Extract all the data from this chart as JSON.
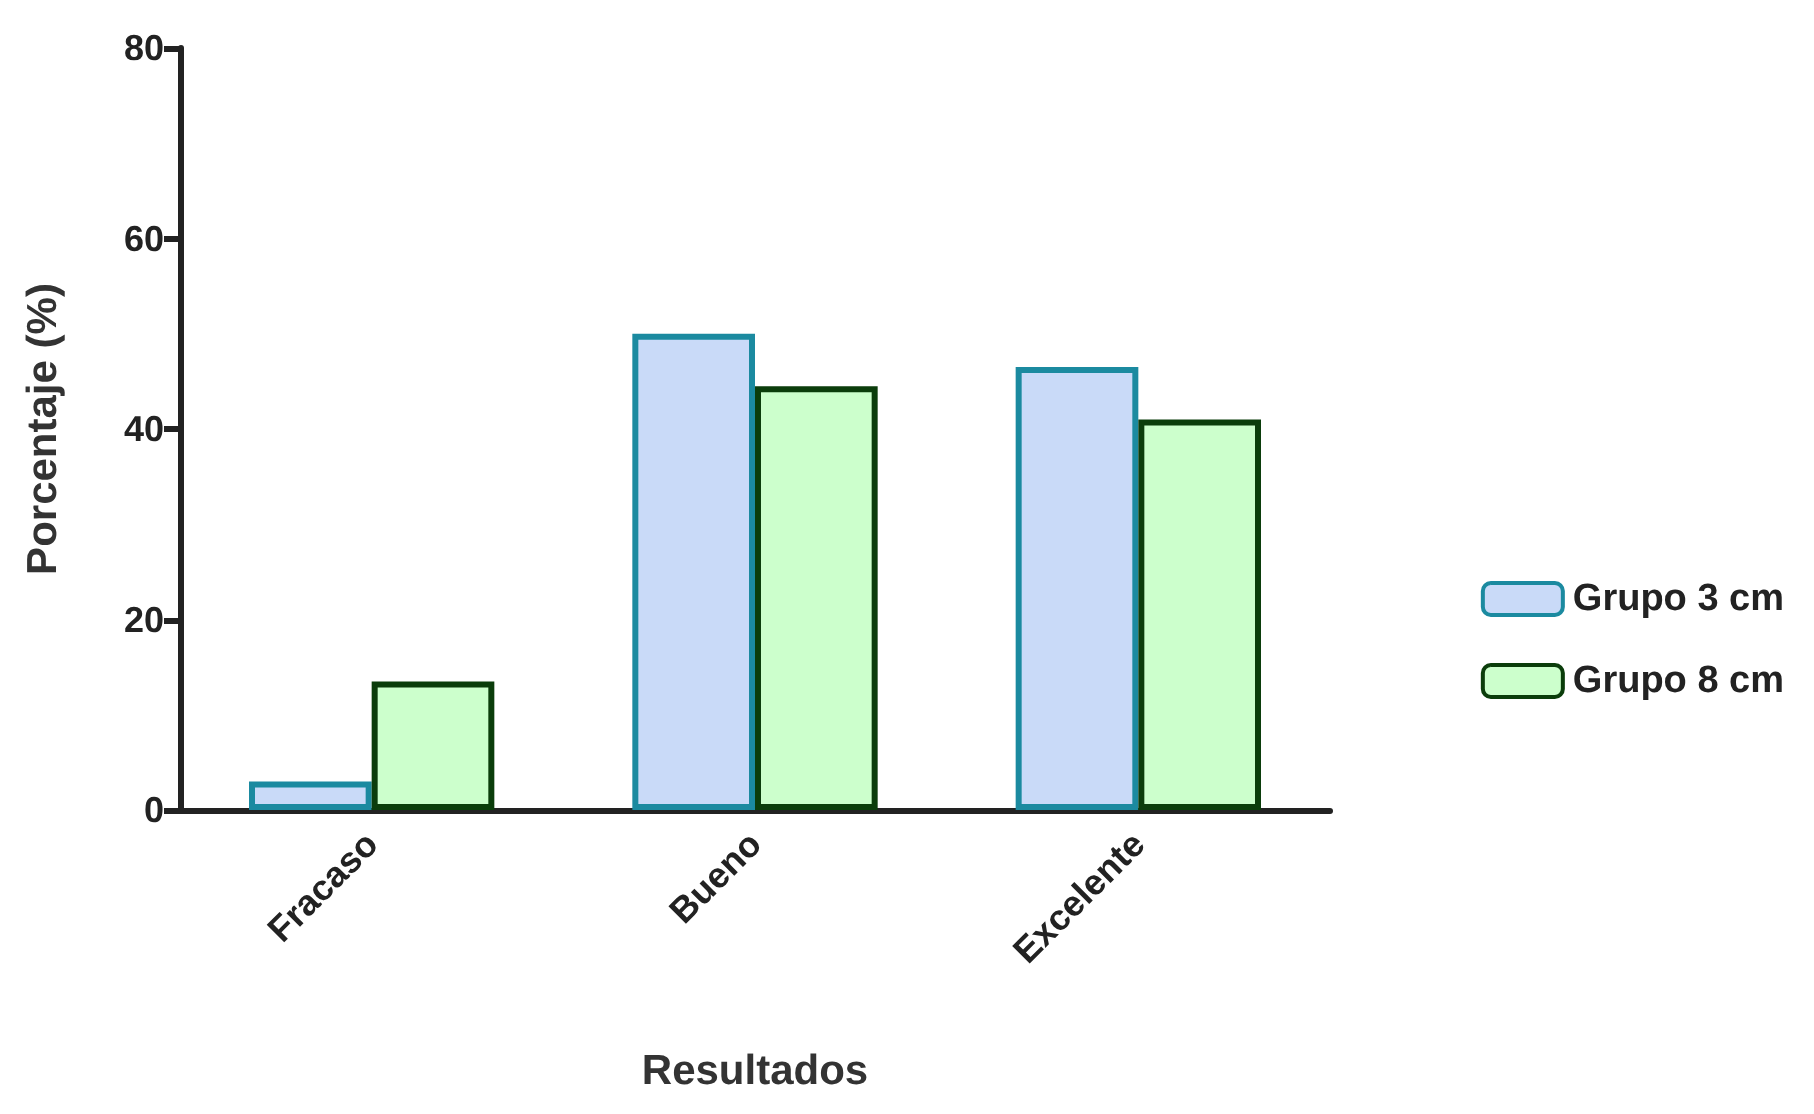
{
  "chart_data": {
    "type": "bar",
    "xlabel": "Resultados",
    "ylabel": "Porcentaje (%)",
    "categories": [
      "Fracaso",
      "Bueno",
      "Excelente"
    ],
    "series": [
      {
        "name": "Grupo 3 cm",
        "color": "#c9daf8",
        "values": [
          3,
          50,
          46.5
        ]
      },
      {
        "name": "Grupo 8 cm",
        "color": "#ccffcc",
        "values": [
          13.5,
          44.5,
          41
        ]
      }
    ],
    "ylim": [
      0,
      80
    ],
    "yticks": [
      0,
      20,
      40,
      60,
      80
    ],
    "grid": false,
    "legend": "right"
  }
}
